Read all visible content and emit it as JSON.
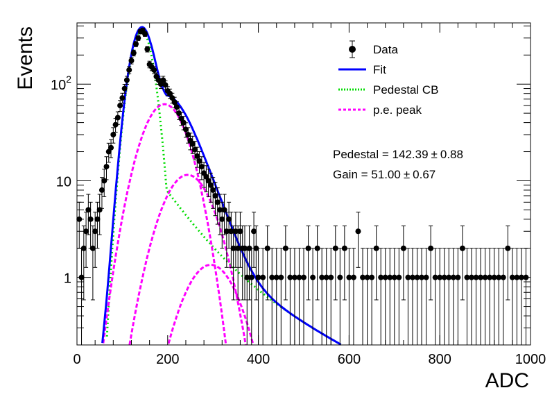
{
  "chart_data": {
    "type": "scatter",
    "xlabel": "ADC",
    "ylabel": "Events",
    "xlim": [
      0,
      1000
    ],
    "ylim": [
      0.2,
      430
    ],
    "yscale": "log",
    "x_ticks": [
      "0",
      "200",
      "400",
      "600",
      "800",
      "1000"
    ],
    "y_ticks": [
      {
        "value": 1,
        "base": "1",
        "exp": ""
      },
      {
        "value": 10,
        "base": "10",
        "exp": ""
      },
      {
        "value": 100,
        "base": "10",
        "exp": "2"
      }
    ],
    "legend": {
      "position": "top-right",
      "entries": [
        {
          "label": "Data",
          "style": "marker",
          "color": "#000000"
        },
        {
          "label": "Fit",
          "style": "solid",
          "color": "#0000ff"
        },
        {
          "label": "Pedestal CB",
          "style": "dotted",
          "color": "#00dd00"
        },
        {
          "label": "p.e. peak",
          "style": "dashed",
          "color": "#ff00ff"
        }
      ]
    },
    "annotations": [
      {
        "text": "Pedestal = 142.39",
        "pm": "±",
        "err": "0.88"
      },
      {
        "text": "Gain = 51.00",
        "pm": "±",
        "err": "0.67"
      }
    ],
    "series": [
      {
        "name": "Data",
        "x": [
          5,
          10,
          15,
          20,
          25,
          30,
          35,
          40,
          45,
          50,
          55,
          60,
          65,
          70,
          75,
          80,
          85,
          90,
          95,
          100,
          105,
          110,
          115,
          120,
          125,
          130,
          135,
          140,
          145,
          150,
          155,
          160,
          165,
          170,
          175,
          180,
          185,
          190,
          195,
          200,
          205,
          210,
          215,
          220,
          225,
          230,
          235,
          240,
          245,
          250,
          255,
          260,
          265,
          270,
          275,
          280,
          285,
          290,
          295,
          300,
          305,
          310,
          315,
          320,
          325,
          330,
          335,
          340,
          345,
          350,
          355,
          360,
          365,
          370,
          375,
          380,
          385,
          390,
          395,
          400,
          410,
          420,
          430,
          440,
          450,
          460,
          470,
          480,
          490,
          500,
          510,
          520,
          530,
          540,
          550,
          560,
          570,
          580,
          590,
          600,
          610,
          620,
          630,
          640,
          650,
          660,
          670,
          680,
          690,
          700,
          710,
          720,
          730,
          740,
          750,
          760,
          770,
          780,
          790,
          800,
          810,
          820,
          830,
          840,
          850,
          860,
          870,
          880,
          890,
          900,
          910,
          920,
          930,
          940,
          950,
          960,
          970,
          980,
          990
        ],
        "y": [
          4,
          1,
          2,
          3,
          5,
          4,
          2,
          3,
          4,
          5,
          8,
          10,
          14,
          20,
          22,
          30,
          38,
          45,
          60,
          72,
          90,
          110,
          140,
          175,
          210,
          260,
          300,
          350,
          360,
          330,
          230,
          160,
          150,
          140,
          120,
          110,
          100,
          110,
          98,
          85,
          80,
          72,
          65,
          58,
          50,
          44,
          40,
          34,
          30,
          26,
          24,
          21,
          18,
          16,
          14,
          12,
          11,
          10,
          9,
          8,
          7,
          6,
          5,
          4,
          5,
          3,
          4,
          3,
          2,
          3,
          2,
          3,
          2,
          2,
          1,
          2,
          1,
          3,
          2,
          1,
          1,
          2,
          1,
          1,
          1,
          2,
          1,
          1,
          1,
          1,
          2,
          1,
          2,
          1,
          1,
          1,
          2,
          1,
          2,
          1,
          1,
          3,
          1,
          1,
          1,
          2,
          1,
          1,
          1,
          1,
          1,
          2,
          1,
          1,
          1,
          1,
          1,
          2,
          1,
          1,
          1,
          1,
          1,
          1,
          2,
          1,
          1,
          1,
          1,
          1,
          1,
          1,
          1,
          1,
          2,
          1,
          1,
          1,
          1
        ]
      }
    ],
    "fit_model": {
      "components": [
        {
          "name": "Fit",
          "color": "#0000ff",
          "style": "solid"
        },
        {
          "name": "Pedestal CB",
          "color": "#00dd00",
          "style": "dotted"
        },
        {
          "name": "p.e. peak 1",
          "color": "#ff00ff",
          "style": "dashed",
          "amp": 62,
          "mu": 193,
          "sigma": 40
        },
        {
          "name": "p.e. peak 2",
          "color": "#ff00ff",
          "style": "dashed",
          "amp": 11.5,
          "mu": 244,
          "sigma": 45
        },
        {
          "name": "p.e. peak 3",
          "color": "#ff00ff",
          "style": "dashed",
          "amp": 1.35,
          "mu": 295,
          "sigma": 48
        }
      ],
      "pedestal": {
        "amp": 360,
        "mu": 142.39,
        "sigma": 20
      }
    }
  }
}
